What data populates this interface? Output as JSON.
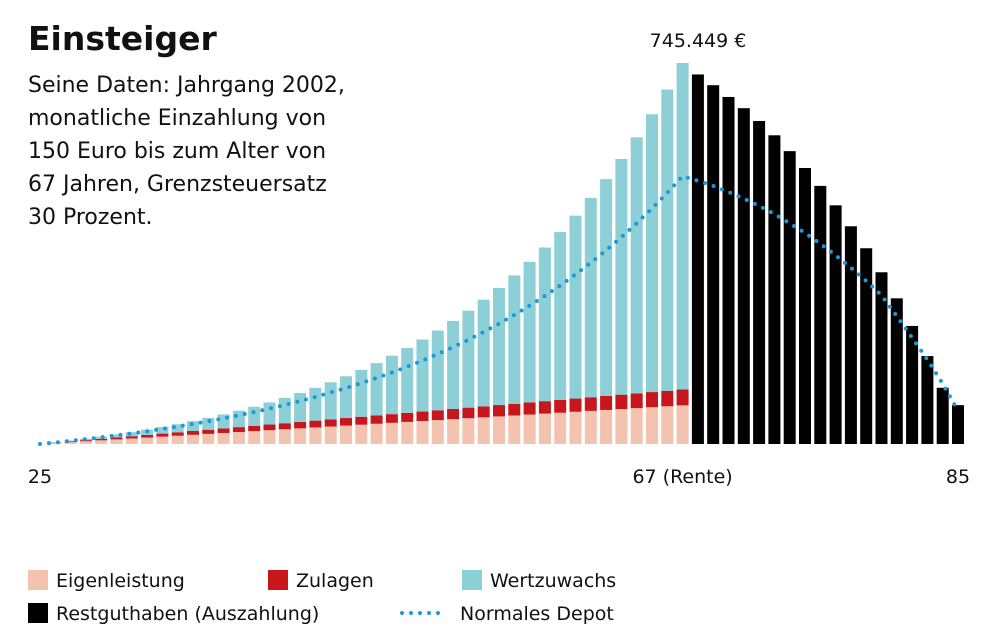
{
  "chart_data": {
    "type": "bar",
    "stacked": true,
    "title": "Einsteiger",
    "subtitle_lines": [
      "Seine Daten: Jahrgang 2002,",
      "monatliche Einzahlung von",
      "150 Euro bis zum Alter von",
      "67 Jahren, Grenzsteuersatz",
      "30 Prozent."
    ],
    "annotation": {
      "value": 745449,
      "label": "745.449 €"
    },
    "categories": [
      "25",
      null,
      null,
      null,
      null,
      null,
      null,
      null,
      null,
      null,
      null,
      null,
      null,
      null,
      null,
      null,
      null,
      null,
      null,
      null,
      null,
      null,
      null,
      null,
      null,
      null,
      null,
      null,
      null,
      null,
      null,
      null,
      null,
      null,
      null,
      null,
      null,
      null,
      null,
      null,
      null,
      null,
      "67 (Rente)",
      null,
      null,
      null,
      null,
      null,
      null,
      null,
      null,
      null,
      null,
      null,
      null,
      null,
      null,
      null,
      null,
      null,
      "85"
    ],
    "series": [
      {
        "name": "Eigenleistung",
        "color": "#f3c3b0",
        "values": [
          null,
          1800,
          3600,
          5400,
          7200,
          9000,
          10800,
          12600,
          14400,
          16200,
          18000,
          19800,
          21600,
          23400,
          25200,
          27000,
          28800,
          30600,
          32400,
          34200,
          36000,
          37800,
          39600,
          41400,
          43200,
          45000,
          46800,
          48600,
          50400,
          52200,
          54000,
          55800,
          57600,
          59400,
          61200,
          63000,
          64800,
          66600,
          68400,
          70200,
          72000,
          73800,
          75600,
          null,
          null,
          null,
          null,
          null,
          null,
          null,
          null,
          null,
          null,
          null,
          null,
          null,
          null,
          null,
          null,
          null,
          null
        ]
      },
      {
        "name": "Zulagen",
        "color": "#c8161d",
        "values": [
          null,
          740,
          1480,
          2220,
          2960,
          3700,
          4440,
          5180,
          5920,
          6660,
          7400,
          8140,
          8880,
          9620,
          10360,
          11100,
          11840,
          12580,
          13320,
          14060,
          14800,
          15540,
          16280,
          17020,
          17760,
          18500,
          19240,
          19980,
          20720,
          21460,
          22200,
          22940,
          23680,
          24420,
          25160,
          25900,
          26640,
          27380,
          28120,
          28860,
          29600,
          30340,
          31080,
          null,
          null,
          null,
          null,
          null,
          null,
          null,
          null,
          null,
          null,
          null,
          null,
          null,
          null,
          null,
          null,
          null,
          null
        ]
      },
      {
        "name": "Wertzuwachs",
        "color": "#8dcfd6",
        "values": [
          null,
          692,
          1611,
          2769,
          4191,
          5890,
          7879,
          10192,
          12842,
          15857,
          19260,
          23079,
          27339,
          32076,
          37326,
          43120,
          49501,
          56500,
          64169,
          72554,
          81706,
          91674,
          102515,
          114294,
          127079,
          140931,
          155937,
          172167,
          189708,
          208662,
          229116,
          251178,
          274966,
          300593,
          328195,
          357908,
          389873,
          424259,
          461230,
          500962,
          543658,
          589517,
          638769,
          null,
          null,
          null,
          null,
          null,
          null,
          null,
          null,
          null,
          null,
          null,
          null,
          null,
          null,
          null,
          null,
          null,
          null
        ]
      },
      {
        "name": "Restguthaben (Auszahlung)",
        "color": "#000000",
        "values": [
          null,
          null,
          null,
          null,
          null,
          null,
          null,
          null,
          null,
          null,
          null,
          null,
          null,
          null,
          null,
          null,
          null,
          null,
          null,
          null,
          null,
          null,
          null,
          null,
          null,
          null,
          null,
          null,
          null,
          null,
          null,
          null,
          null,
          null,
          null,
          null,
          null,
          null,
          null,
          null,
          null,
          null,
          null,
          723000,
          702000,
          679000,
          657000,
          632000,
          604000,
          573000,
          540000,
          505000,
          467000,
          426000,
          383000,
          336000,
          285000,
          231000,
          172000,
          110000,
          76000
        ]
      },
      {
        "name": "Normales Depot",
        "type": "line",
        "color": "#1a9ad6",
        "values": [
          0,
          3000,
          6100,
          9500,
          13000,
          16800,
          20800,
          25000,
          29500,
          34200,
          39200,
          44600,
          50200,
          56200,
          62600,
          69300,
          76400,
          84000,
          92000,
          101000,
          109500,
          119100,
          129200,
          139900,
          151300,
          163300,
          176100,
          189700,
          204000,
          219200,
          235400,
          252500,
          270600,
          289800,
          310200,
          331800,
          354700,
          378900,
          404600,
          431900,
          460800,
          491400,
          524000,
          515000,
          505000,
          493000,
          480000,
          466000,
          450000,
          432000,
          413000,
          392000,
          369000,
          345000,
          319000,
          291000,
          250000,
          208000,
          165000,
          118000,
          65000
        ]
      }
    ]
  }
}
